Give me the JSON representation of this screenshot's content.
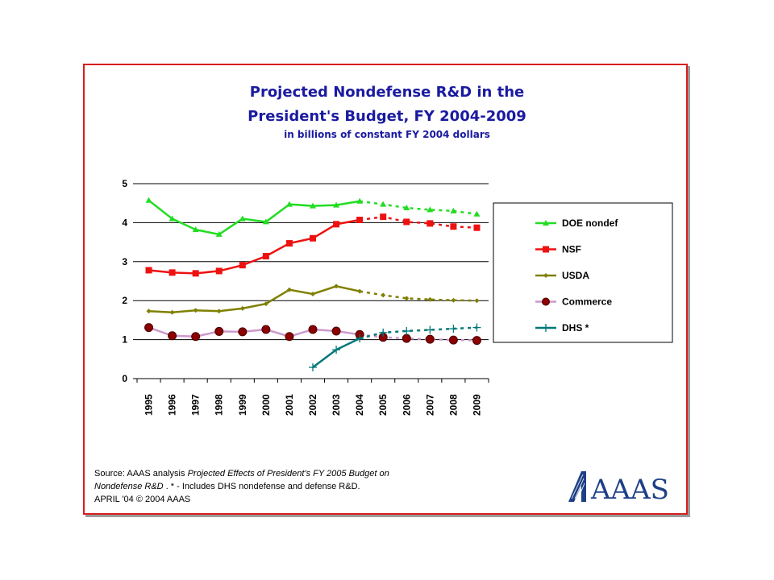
{
  "title_line1": "Projected Nondefense R&D in the",
  "title_line2": "President's Budget, FY 2004-2009",
  "subtitle": "in billions of constant FY 2004 dollars",
  "source": {
    "line1_prefix": "Source: AAAS analysis ",
    "line1_italic": "Projected Effects of President's FY 2005 Budget on",
    "line2_italic": "Nondefense R&D",
    "line2_rest": " .  * - Includes DHS nondefense  and defense R&D.",
    "line3": "APRIL '04 © 2004 AAAS"
  },
  "logo_text": "AAAS",
  "chart_data": {
    "type": "line",
    "x": [
      "1995",
      "1996",
      "1997",
      "1998",
      "1999",
      "2000",
      "2001",
      "2002",
      "2003",
      "2004",
      "2005",
      "2006",
      "2007",
      "2008",
      "2009"
    ],
    "ylim": [
      0,
      5
    ],
    "yticks": [
      0,
      1,
      2,
      3,
      4,
      5
    ],
    "grid": true,
    "legend_position": "right",
    "projected_from": "2004",
    "series": [
      {
        "name": "DOE nondef",
        "color": "#22dd22",
        "marker": "triangle",
        "values": [
          4.57,
          4.1,
          3.82,
          3.7,
          4.1,
          4.02,
          4.47,
          4.43,
          4.45,
          4.55,
          4.47,
          4.38,
          4.33,
          4.3,
          4.22
        ]
      },
      {
        "name": "NSF",
        "color": "#ee1111",
        "marker": "square",
        "values": [
          2.78,
          2.72,
          2.7,
          2.76,
          2.91,
          3.14,
          3.47,
          3.6,
          3.96,
          4.07,
          4.15,
          4.02,
          3.98,
          3.9,
          3.87
        ]
      },
      {
        "name": "USDA",
        "color": "#808000",
        "marker": "diamond",
        "values": [
          1.73,
          1.7,
          1.75,
          1.73,
          1.8,
          1.92,
          2.28,
          2.17,
          2.37,
          2.24,
          2.14,
          2.06,
          2.03,
          2.01,
          2.0
        ]
      },
      {
        "name": "Commerce",
        "color": "#cc99cc",
        "marker": "circle",
        "values": [
          1.31,
          1.1,
          1.08,
          1.21,
          1.2,
          1.26,
          1.08,
          1.26,
          1.22,
          1.13,
          1.06,
          1.03,
          1.01,
          0.99,
          0.98
        ]
      },
      {
        "name": "DHS *",
        "color": "#007777",
        "marker": "plus",
        "values": [
          null,
          null,
          null,
          null,
          null,
          null,
          null,
          0.29,
          0.74,
          1.03,
          1.18,
          1.22,
          1.25,
          1.28,
          1.31
        ]
      }
    ]
  }
}
